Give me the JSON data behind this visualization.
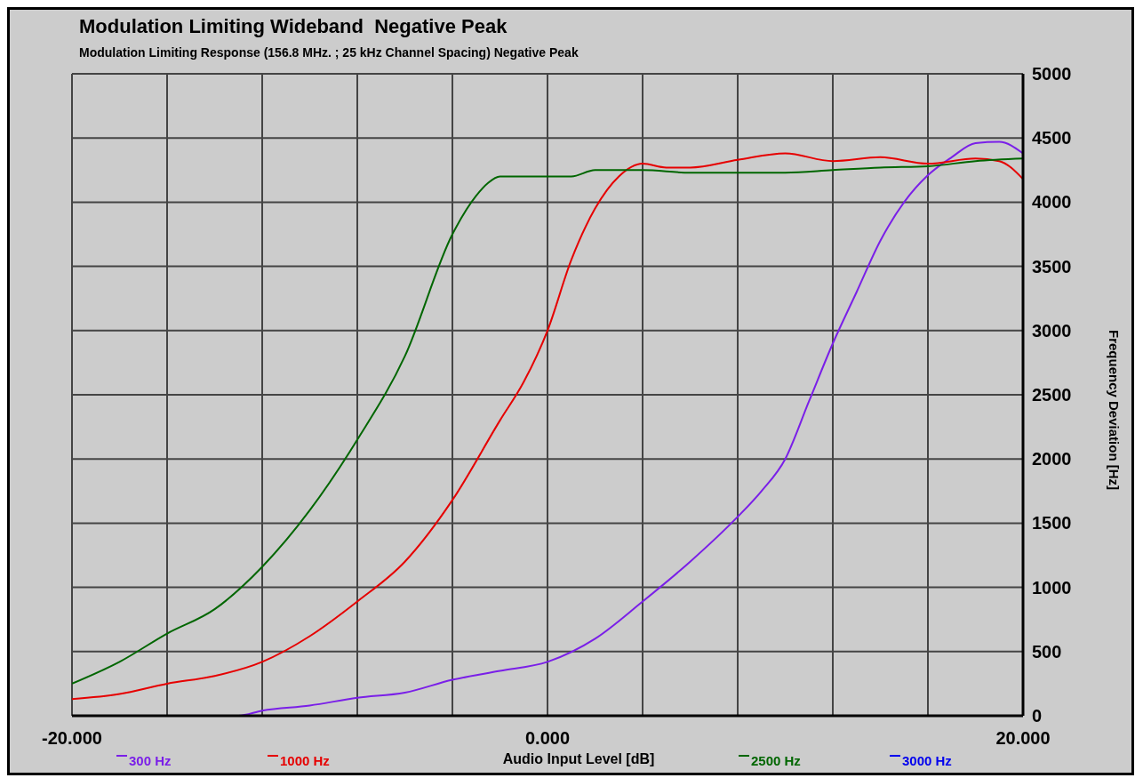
{
  "chart_data": {
    "type": "line",
    "title": "Modulation Limiting Wideband  Negative Peak",
    "subtitle": "Modulation Limiting Response (156.8 MHz. ; 25 kHz Channel Spacing) Negative Peak",
    "xlabel": "Audio Input Level [dB]",
    "ylabel": "Frequency Deviation [Hz]",
    "xlim": [
      -20,
      20
    ],
    "xticks": [
      {
        "value": -20,
        "label": "-20.000"
      },
      {
        "value": -16,
        "label": null
      },
      {
        "value": -12,
        "label": null
      },
      {
        "value": -8,
        "label": null
      },
      {
        "value": -4,
        "label": null
      },
      {
        "value": 0,
        "label": "0.000"
      },
      {
        "value": 4,
        "label": null
      },
      {
        "value": 8,
        "label": null
      },
      {
        "value": 12,
        "label": null
      },
      {
        "value": 16,
        "label": null
      },
      {
        "value": 20,
        "label": "20.000"
      }
    ],
    "ylim": [
      0,
      5000
    ],
    "yticks": [
      0,
      500,
      1000,
      1500,
      2000,
      2500,
      3000,
      3500,
      4000,
      4500,
      5000
    ],
    "grid": true,
    "legend": "bottom",
    "marker": "none",
    "line_style": "solid",
    "series": [
      {
        "name": "300 Hz",
        "color": "#7a1fe8",
        "x": [
          -20,
          -13,
          -12,
          -10,
          -8,
          -6,
          -4,
          -2,
          0,
          2,
          4,
          6,
          8,
          9,
          10,
          11,
          12,
          13,
          14,
          15,
          16,
          17,
          18,
          19,
          20
        ],
        "values": [
          0,
          0,
          40,
          80,
          140,
          180,
          280,
          350,
          420,
          600,
          890,
          1200,
          1550,
          1750,
          2000,
          2450,
          2900,
          3300,
          3700,
          4000,
          4210,
          4350,
          4460,
          4470,
          4380
        ]
      },
      {
        "name": "1000 Hz",
        "color": "#e60000",
        "x": [
          -20,
          -18,
          -16,
          -14,
          -12,
          -10,
          -8,
          -6,
          -4,
          -2,
          -1,
          0,
          1,
          2,
          3,
          4,
          5,
          6,
          8,
          10,
          12,
          14,
          16,
          18,
          19,
          20
        ],
        "values": [
          130,
          170,
          250,
          310,
          420,
          620,
          890,
          1200,
          1680,
          2300,
          2600,
          3000,
          3550,
          3950,
          4200,
          4300,
          4270,
          4270,
          4330,
          4380,
          4320,
          4350,
          4300,
          4340,
          4320,
          4180
        ]
      },
      {
        "name": "2500 Hz",
        "color": "#006600",
        "x": [
          -20,
          -18,
          -16,
          -14,
          -12,
          -10,
          -8,
          -6,
          -4,
          -3,
          -2.5,
          -2,
          0,
          1,
          2,
          4,
          6,
          8,
          10,
          12,
          14,
          16,
          18,
          20
        ],
        "values": [
          250,
          420,
          640,
          830,
          1160,
          1600,
          2150,
          2800,
          3750,
          4050,
          4150,
          4200,
          4200,
          4200,
          4250,
          4250,
          4230,
          4230,
          4230,
          4250,
          4270,
          4280,
          4320,
          4340
        ]
      },
      {
        "name": "3000 Hz",
        "color": "#0000ee"
      }
    ]
  }
}
